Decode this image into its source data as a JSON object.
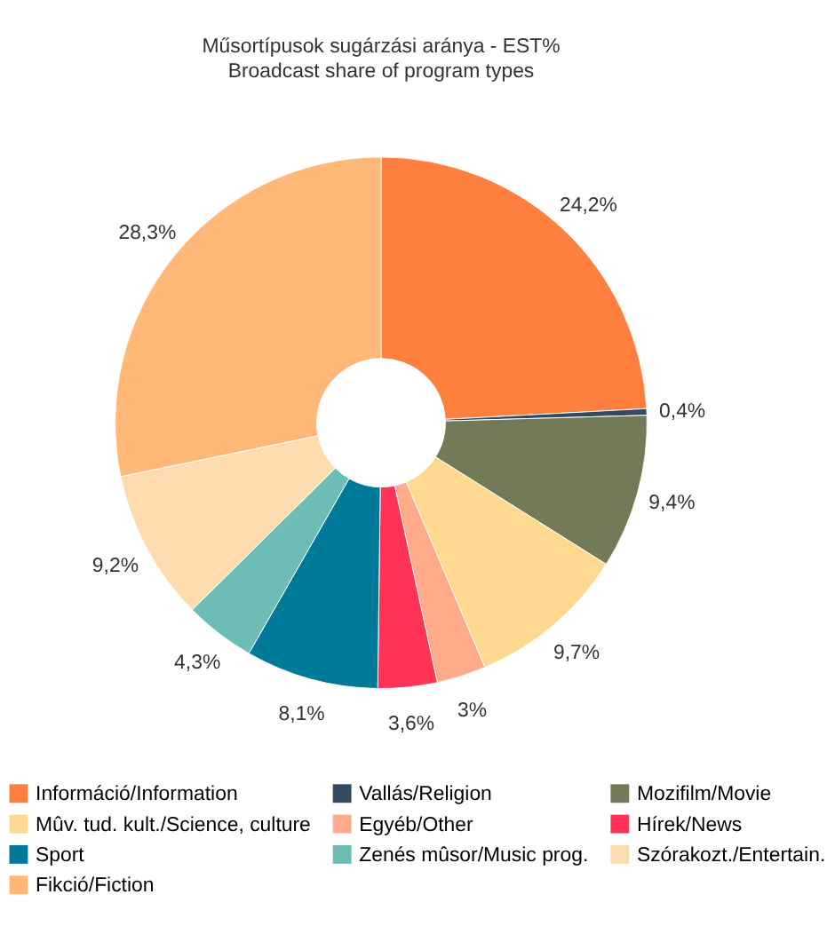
{
  "chart_data": {
    "type": "donut",
    "title": "Műsortípusok sugárzási aránya - EST%",
    "subtitle": "Broadcast share of program types",
    "categories": [
      "Információ/Information",
      "Vallás/Religion",
      "Mozifilm/Movie",
      "Mûv. tud. kult./Science, culture",
      "Egyéb/Other",
      "Hírek/News",
      "Sport",
      "Zenés mûsor/Music prog.",
      "Szórakozt./Entertain.",
      "Fikció/Fiction"
    ],
    "values": [
      24.2,
      0.4,
      9.4,
      9.7,
      3,
      3.6,
      8.1,
      4.3,
      9.2,
      28.3
    ],
    "value_labels": [
      "24,2%",
      "0,4%",
      "9,4%",
      "9,7%",
      "3%",
      "3,6%",
      "8,1%",
      "4,3%",
      "9,2%",
      "28,3%"
    ],
    "colors": [
      "#ff7f3f",
      "#334a60",
      "#737a58",
      "#ffd98f",
      "#ffaa88",
      "#ff3355",
      "#007a99",
      "#6bbdb5",
      "#ffdcb0",
      "#ffb877"
    ],
    "legend": "bottom"
  }
}
